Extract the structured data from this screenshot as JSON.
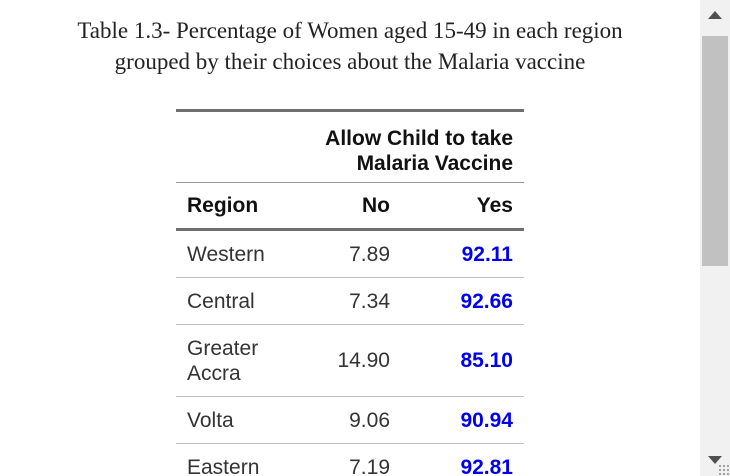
{
  "caption": {
    "line1": "Table 1.3- Percentage of Women aged 15-49 in each region",
    "line2": "grouped by their choices about the Malaria vaccine"
  },
  "table": {
    "spanner": {
      "line1": "Allow Child to take",
      "line2": "Malaria Vaccine"
    },
    "headers": {
      "region": "Region",
      "no": "No",
      "yes": "Yes"
    },
    "rows": [
      {
        "region_line1": "Western",
        "region_line2": "",
        "no": "7.89",
        "yes": "92.11"
      },
      {
        "region_line1": "Central",
        "region_line2": "",
        "no": "7.34",
        "yes": "92.66"
      },
      {
        "region_line1": "Greater",
        "region_line2": "Accra",
        "no": "14.90",
        "yes": "85.10"
      },
      {
        "region_line1": "Volta",
        "region_line2": "",
        "no": "9.06",
        "yes": "90.94"
      },
      {
        "region_line1": "Eastern",
        "region_line2": "",
        "no": "7.19",
        "yes": "92.81"
      }
    ]
  },
  "colors": {
    "yes_value": "#0000ee",
    "rule": "#6e6e6e",
    "scrollbar_thumb": "#c1c1c1"
  },
  "scrollbar": {
    "up_icon": "arrow-up-icon",
    "down_icon": "arrow-down-icon"
  }
}
